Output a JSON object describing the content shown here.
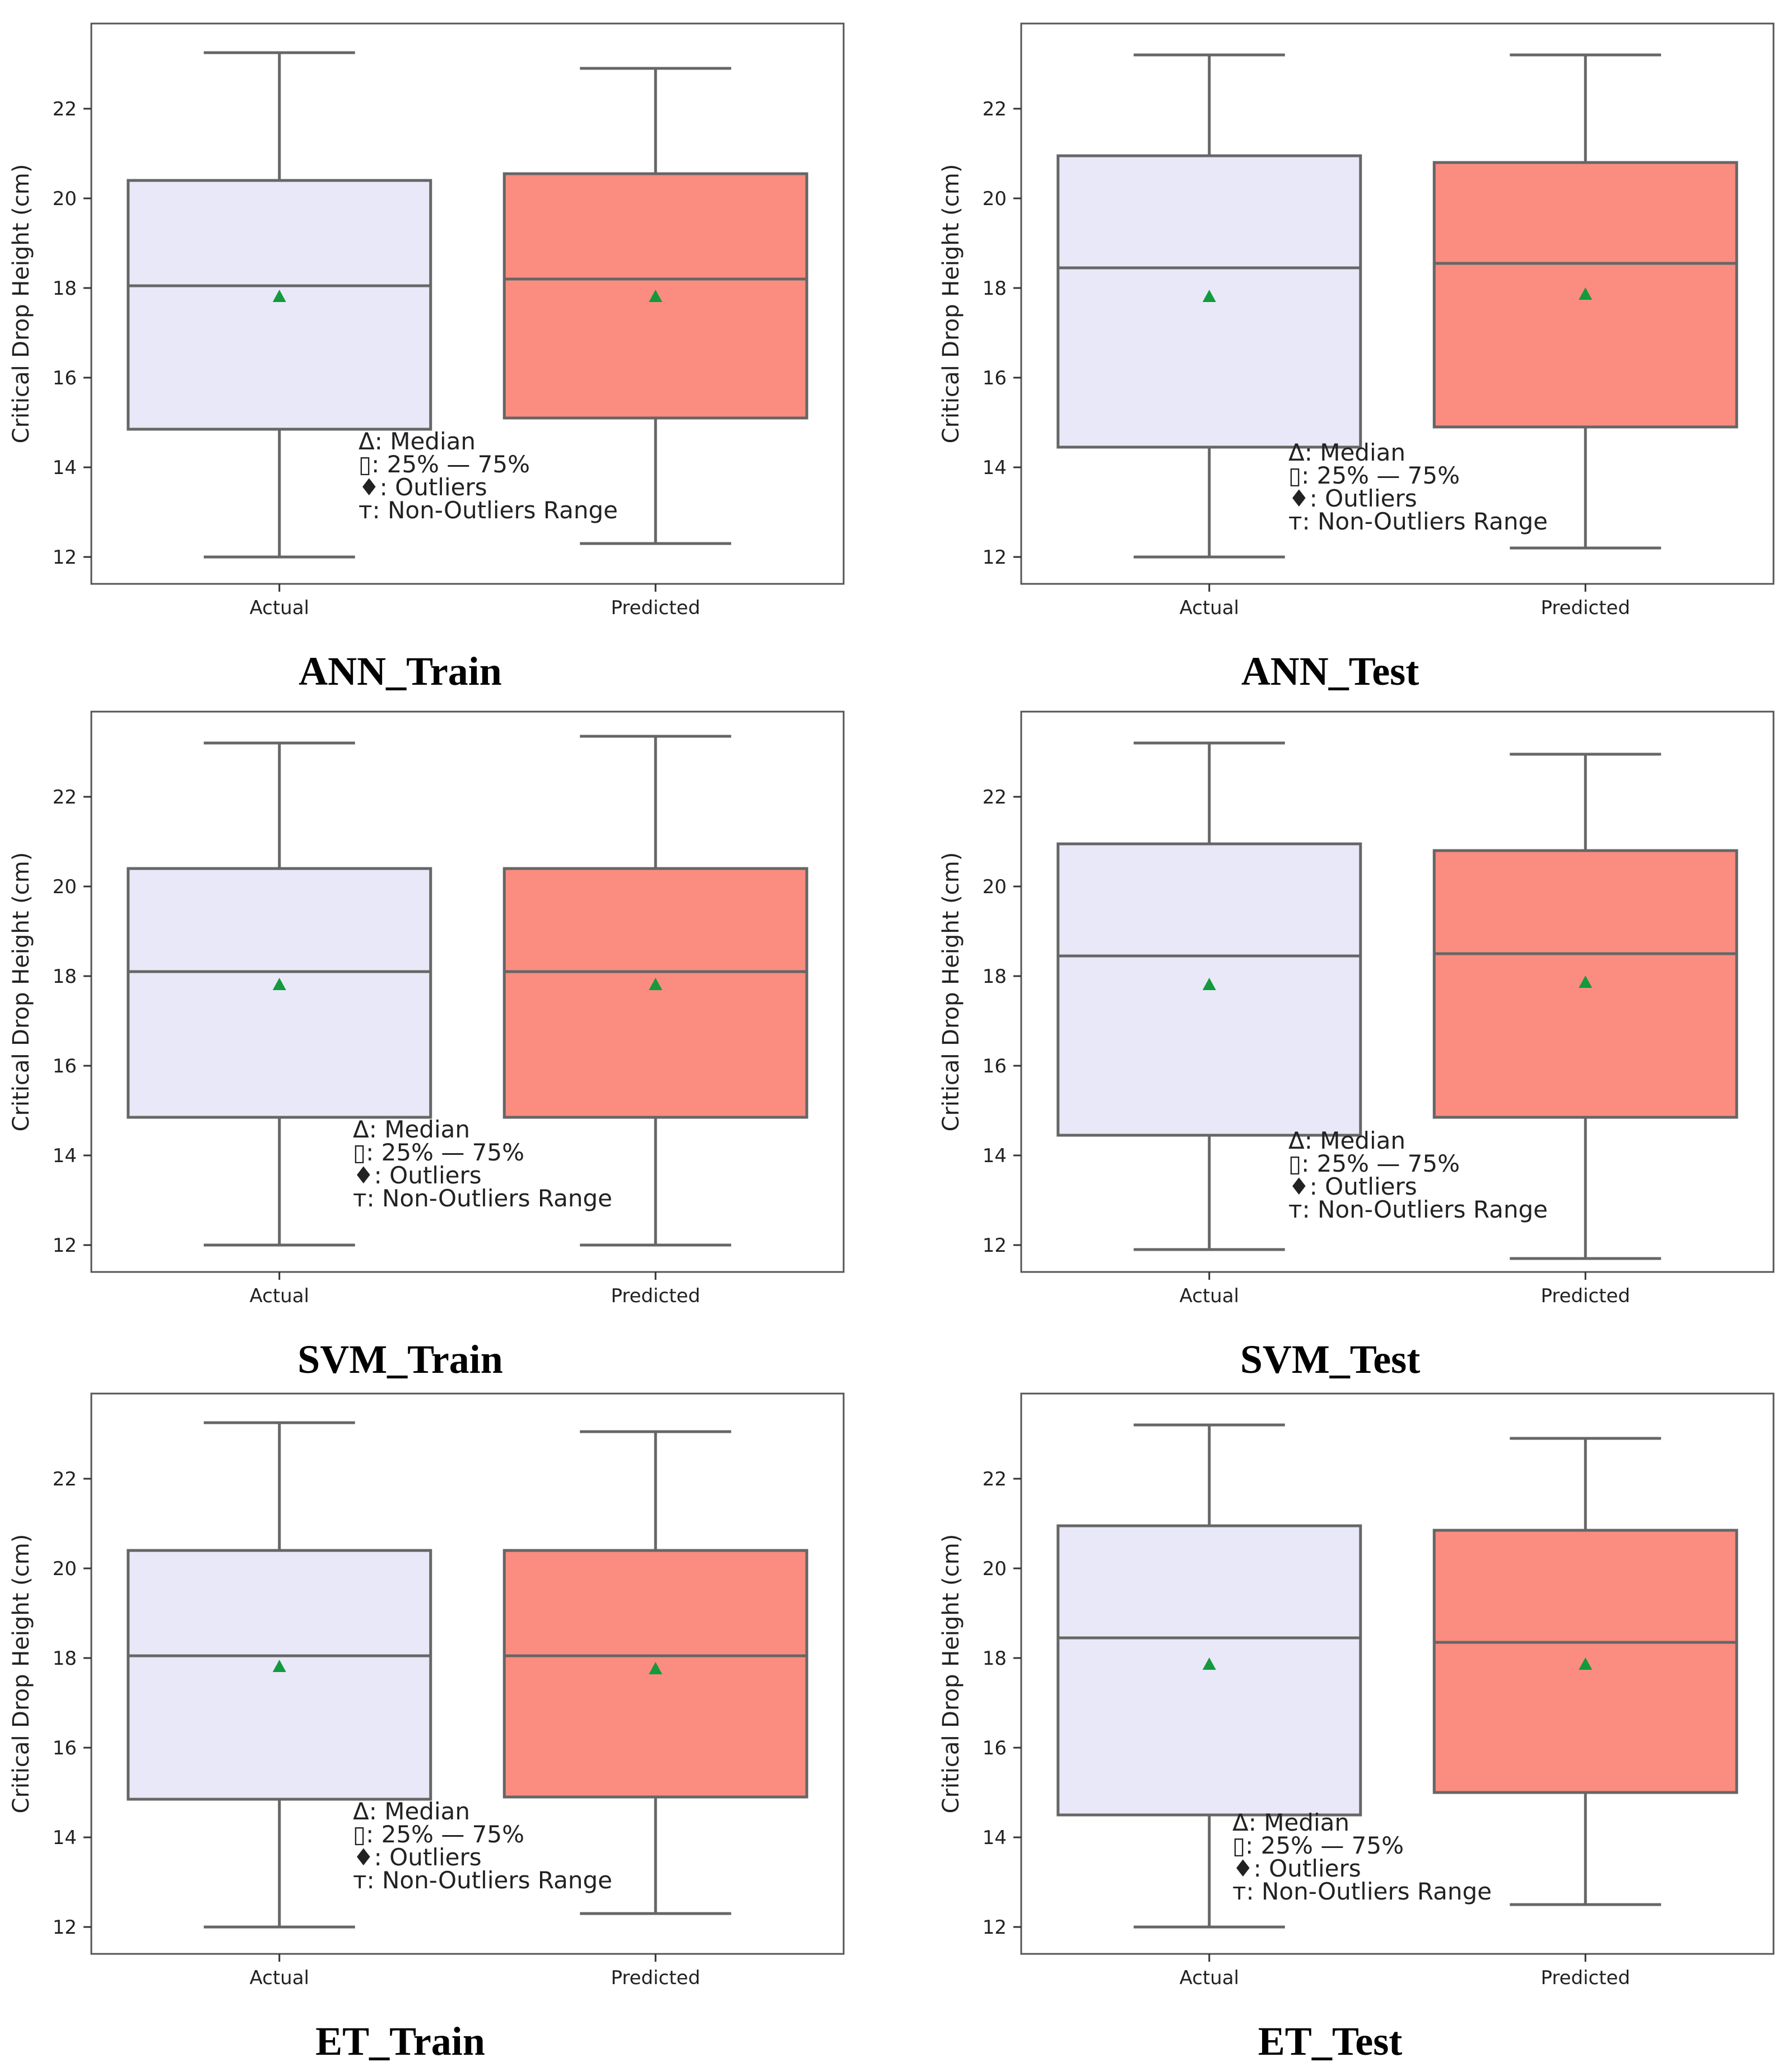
{
  "legend": [
    "Δ: Median",
    "▯: 25% — 75%",
    "♦: Outliers",
    "т: Non-Outliers Range"
  ],
  "colors": {
    "actual_fill": "#e8e8f8",
    "predicted_fill": "#fa8c80",
    "box_stroke": "#666666",
    "mean_marker": "#129a3c"
  },
  "chart_data": [
    {
      "type": "box",
      "title": "ANN_Train",
      "categories": [
        "Actual",
        "Predicted"
      ],
      "ylabel": "Critical Drop Height (cm)",
      "yticks": [
        12,
        14,
        16,
        18,
        20,
        22
      ],
      "ylim": [
        11.4,
        23.9
      ],
      "boxes": [
        {
          "name": "Actual",
          "whisker_low": 12.0,
          "q1": 14.85,
          "median": 18.05,
          "q3": 20.4,
          "whisker_high": 23.25,
          "mean": 17.8
        },
        {
          "name": "Predicted",
          "whisker_low": 12.3,
          "q1": 15.1,
          "median": 18.2,
          "q3": 20.55,
          "whisker_high": 22.9,
          "mean": 17.8
        }
      ]
    },
    {
      "type": "box",
      "title": "ANN_Test",
      "categories": [
        "Actual",
        "Predicted"
      ],
      "ylabel": "Critical Drop Height (cm)",
      "yticks": [
        12,
        14,
        16,
        18,
        20,
        22
      ],
      "ylim": [
        11.4,
        23.9
      ],
      "boxes": [
        {
          "name": "Actual",
          "whisker_low": 12.0,
          "q1": 14.45,
          "median": 18.45,
          "q3": 20.95,
          "whisker_high": 23.2,
          "mean": 17.8
        },
        {
          "name": "Predicted",
          "whisker_low": 12.2,
          "q1": 14.9,
          "median": 18.55,
          "q3": 20.8,
          "whisker_high": 23.2,
          "mean": 17.85
        }
      ]
    },
    {
      "type": "box",
      "title": "SVM_Train",
      "categories": [
        "Actual",
        "Predicted"
      ],
      "ylabel": "Critical Drop Height (cm)",
      "yticks": [
        12,
        14,
        16,
        18,
        20,
        22
      ],
      "ylim": [
        11.4,
        23.9
      ],
      "boxes": [
        {
          "name": "Actual",
          "whisker_low": 12.0,
          "q1": 14.85,
          "median": 18.1,
          "q3": 20.4,
          "whisker_high": 23.2,
          "mean": 17.8
        },
        {
          "name": "Predicted",
          "whisker_low": 12.0,
          "q1": 14.85,
          "median": 18.1,
          "q3": 20.4,
          "whisker_high": 23.35,
          "mean": 17.8
        }
      ]
    },
    {
      "type": "box",
      "title": "SVM_Test",
      "categories": [
        "Actual",
        "Predicted"
      ],
      "ylabel": "Critical Drop Height (cm)",
      "yticks": [
        12,
        14,
        16,
        18,
        20,
        22
      ],
      "ylim": [
        11.4,
        23.9
      ],
      "boxes": [
        {
          "name": "Actual",
          "whisker_low": 11.9,
          "q1": 14.45,
          "median": 18.45,
          "q3": 20.95,
          "whisker_high": 23.2,
          "mean": 17.8
        },
        {
          "name": "Predicted",
          "whisker_low": 11.7,
          "q1": 14.85,
          "median": 18.5,
          "q3": 20.8,
          "whisker_high": 22.95,
          "mean": 17.85
        }
      ]
    },
    {
      "type": "box",
      "title": "ET_Train",
      "categories": [
        "Actual",
        "Predicted"
      ],
      "ylabel": "Critical Drop Height (cm)",
      "yticks": [
        12,
        14,
        16,
        18,
        20,
        22
      ],
      "ylim": [
        11.4,
        23.9
      ],
      "boxes": [
        {
          "name": "Actual",
          "whisker_low": 12.0,
          "q1": 14.85,
          "median": 18.05,
          "q3": 20.4,
          "whisker_high": 23.25,
          "mean": 17.8
        },
        {
          "name": "Predicted",
          "whisker_low": 12.3,
          "q1": 14.9,
          "median": 18.05,
          "q3": 20.4,
          "whisker_high": 23.05,
          "mean": 17.75
        }
      ]
    },
    {
      "type": "box",
      "title": "ET_Test",
      "categories": [
        "Actual",
        "Predicted"
      ],
      "ylabel": "Critical Drop Height (cm)",
      "yticks": [
        12,
        14,
        16,
        18,
        20,
        22
      ],
      "ylim": [
        11.4,
        23.9
      ],
      "boxes": [
        {
          "name": "Actual",
          "whisker_low": 12.0,
          "q1": 14.5,
          "median": 18.45,
          "q3": 20.95,
          "whisker_high": 23.2,
          "mean": 17.85
        },
        {
          "name": "Predicted",
          "whisker_low": 12.5,
          "q1": 15.0,
          "median": 18.35,
          "q3": 20.85,
          "whisker_high": 22.9,
          "mean": 17.85
        }
      ]
    }
  ]
}
